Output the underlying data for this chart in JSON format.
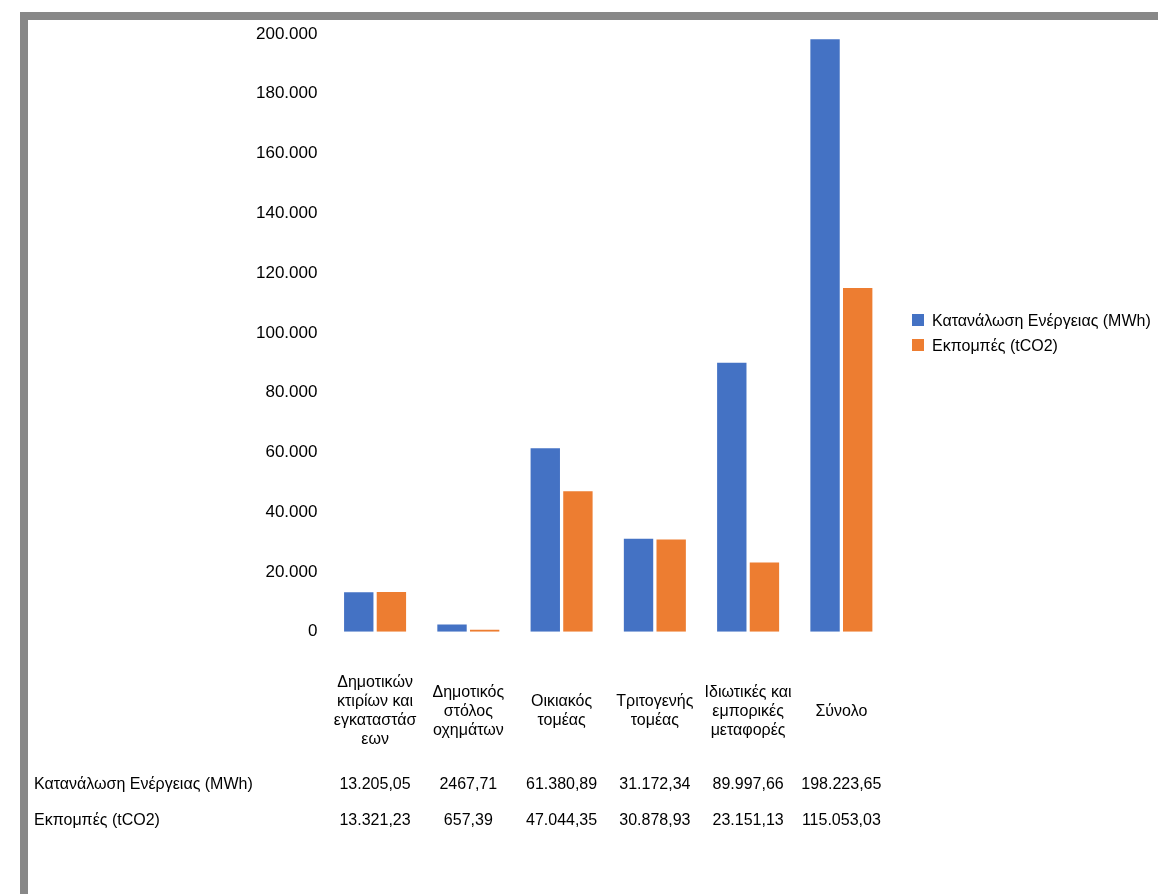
{
  "chart_data": {
    "type": "bar",
    "categories": [
      "Δημοτικών κτιρίων και εγκαταστάσεων",
      "Δημοτικός στόλος οχημάτων",
      "Οικιακός τομέας",
      "Τριτογενής τομέας",
      "Ιδιωτικές και εμπορικές μεταφορές",
      "Σύνολο"
    ],
    "series": [
      {
        "name": "Κατανάλωση Ενέργειας (MWh)",
        "color": "#4472c4",
        "values": [
          13205.05,
          2467.71,
          61380.89,
          31172.34,
          89997.66,
          198223.65
        ],
        "value_labels": [
          "13.205,05",
          "2467,71",
          "61.380,89",
          "31.172,34",
          "89.997,66",
          "198.223,65"
        ]
      },
      {
        "name": "Εκπομπές (tCO2)",
        "color": "#ed7d31",
        "values": [
          13321.23,
          657.39,
          47044.35,
          30878.93,
          23151.13,
          115053.03
        ],
        "value_labels": [
          "13.321,23",
          "657,39",
          "47.044,35",
          "30.878,93",
          "23.151,13",
          "115.053,03"
        ]
      }
    ],
    "ylim": [
      0,
      200000
    ],
    "yticks": [
      0,
      {
        "value": 20000,
        "label": "20.000"
      },
      {
        "value": 40000,
        "label": "40.000"
      },
      {
        "value": 60000,
        "label": "60.000"
      },
      {
        "value": 80000,
        "label": "80.000"
      },
      {
        "value": 100000,
        "label": "100.000"
      },
      {
        "value": 120000,
        "label": "120.000"
      },
      {
        "value": 140000,
        "label": "140.000"
      },
      {
        "value": 160000,
        "label": "160.000"
      },
      {
        "value": 180000,
        "label": "180.000"
      },
      {
        "value": 200000,
        "label": "200.000"
      }
    ],
    "legend": "right"
  }
}
